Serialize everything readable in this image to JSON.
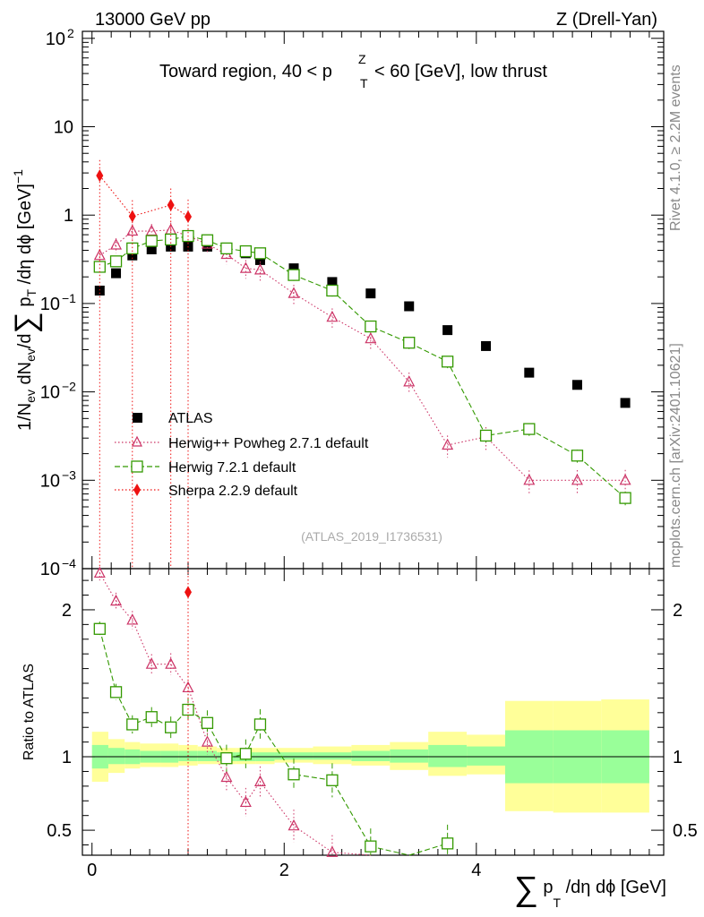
{
  "header": {
    "energy_label": "13000 GeV pp",
    "process_label": "Z (Drell-Yan)",
    "plot_title": "Toward region, 40 < p",
    "plot_title_tail": " < 60 [GeV], low thrust",
    "plot_title_sup": "Z",
    "plot_title_sub": "T"
  },
  "side_labels": {
    "rivet": "Rivet 4.1.0, ≥ 2.2M events",
    "mcplots": "mcplots.cern.ch [arXiv:2401.10621]"
  },
  "watermark": "(ATLAS_2019_I1736531)",
  "legend": [
    {
      "key": "atlas",
      "label": "ATLAS"
    },
    {
      "key": "herwigpp",
      "label": "Herwig++ Powheg 2.7.1 default"
    },
    {
      "key": "herwig7",
      "label": "Herwig 7.2.1 default"
    },
    {
      "key": "sherpa",
      "label": "Sherpa 2.2.9 default"
    }
  ],
  "colors": {
    "atlas": "#000000",
    "herwigpp": "#cc3366",
    "herwig7": "#339900",
    "sherpa": "#ee1111",
    "band_inner": "#99ff99",
    "band_outer": "#ffff99"
  },
  "chart_data": [
    {
      "type": "scatter",
      "scale": "log",
      "ylabel": "1/N_ev dN_ev/d∑ p_T /dη dϕ [GeV]^-1",
      "xlim": [
        -0.1,
        5.95
      ],
      "ylim": [
        0.0001,
        120
      ],
      "y_ticks": [
        {
          "value": 0.0001,
          "label": "10",
          "exp": "−4"
        },
        {
          "value": 0.001,
          "label": "10",
          "exp": "−3"
        },
        {
          "value": 0.01,
          "label": "10",
          "exp": "−2"
        },
        {
          "value": 0.1,
          "label": "10",
          "exp": "−1"
        },
        {
          "value": 1,
          "label": "1",
          "exp": ""
        },
        {
          "value": 10,
          "label": "10",
          "exp": ""
        },
        {
          "value": 100,
          "label": "10",
          "exp": "2"
        }
      ],
      "series": [
        {
          "name": "ATLAS",
          "key": "atlas",
          "x": [
            0.08,
            0.25,
            0.42,
            0.62,
            0.82,
            1.0,
            1.2,
            1.4,
            1.6,
            1.75,
            2.1,
            2.5,
            2.9,
            3.3,
            3.7,
            4.1,
            4.55,
            5.05,
            5.55
          ],
          "y": [
            0.14,
            0.22,
            0.35,
            0.41,
            0.44,
            0.44,
            0.44,
            0.42,
            0.37,
            0.31,
            0.25,
            0.175,
            0.13,
            0.093,
            0.05,
            0.033,
            0.0165,
            0.012,
            0.0075
          ]
        },
        {
          "name": "Herwig++ Powheg 2.7.1 default",
          "key": "herwigpp",
          "x": [
            0.08,
            0.25,
            0.42,
            0.62,
            0.82,
            1.0,
            1.2,
            1.4,
            1.6,
            1.75,
            2.1,
            2.5,
            2.9,
            3.3,
            3.7,
            4.1,
            4.55,
            5.05,
            5.55
          ],
          "y": [
            0.35,
            0.46,
            0.66,
            0.66,
            0.68,
            0.58,
            0.47,
            0.36,
            0.25,
            0.24,
            0.13,
            0.07,
            0.04,
            0.013,
            0.0025,
            0.0031,
            0.001,
            0.001,
            0.001
          ]
        },
        {
          "name": "Herwig 7.2.1 default",
          "key": "herwig7",
          "x": [
            0.08,
            0.25,
            0.42,
            0.62,
            0.82,
            1.0,
            1.2,
            1.4,
            1.6,
            1.75,
            2.1,
            2.5,
            2.9,
            3.3,
            3.7,
            4.1,
            4.55,
            5.05,
            5.55
          ],
          "y": [
            0.26,
            0.3,
            0.42,
            0.51,
            0.53,
            0.58,
            0.52,
            0.42,
            0.39,
            0.37,
            0.21,
            0.14,
            0.055,
            0.036,
            0.022,
            0.0032,
            0.0038,
            0.0019,
            0.00063
          ]
        },
        {
          "name": "Sherpa 2.2.9 default",
          "key": "sherpa",
          "x": [
            0.08,
            0.42,
            0.82,
            1.0
          ],
          "y": [
            2.8,
            0.97,
            1.3,
            0.96
          ]
        }
      ]
    },
    {
      "type": "scatter",
      "scale": "linear",
      "xlabel": "∑ p_T /dη dϕ [GeV]",
      "ylabel": "Ratio to ATLAS",
      "xlim": [
        -0.1,
        5.95
      ],
      "ylim": [
        0.33,
        2.28
      ],
      "x_ticks": [
        0,
        2,
        4
      ],
      "y_ticks": [
        0.5,
        1,
        2
      ],
      "bands": {
        "edges": [
          0,
          0.17,
          0.34,
          0.5,
          0.72,
          0.9,
          1.1,
          1.3,
          1.5,
          1.7,
          1.9,
          2.3,
          2.7,
          3.1,
          3.5,
          3.9,
          4.3,
          4.8,
          5.3,
          5.8
        ],
        "inner": [
          [
            0.92,
            1.08
          ],
          [
            0.95,
            1.06
          ],
          [
            0.95,
            1.05
          ],
          [
            0.96,
            1.04
          ],
          [
            0.96,
            1.04
          ],
          [
            0.97,
            1.04
          ],
          [
            0.97,
            1.04
          ],
          [
            0.97,
            1.03
          ],
          [
            0.97,
            1.03
          ],
          [
            0.97,
            1.03
          ],
          [
            0.98,
            1.03
          ],
          [
            0.98,
            1.03
          ],
          [
            0.97,
            1.04
          ],
          [
            0.96,
            1.05
          ],
          [
            0.93,
            1.08
          ],
          [
            0.94,
            1.07
          ],
          [
            0.82,
            1.18
          ],
          [
            0.82,
            1.18
          ],
          [
            0.82,
            1.18
          ]
        ],
        "outer": [
          [
            0.83,
            1.17
          ],
          [
            0.89,
            1.12
          ],
          [
            0.92,
            1.1
          ],
          [
            0.93,
            1.09
          ],
          [
            0.93,
            1.09
          ],
          [
            0.94,
            1.08
          ],
          [
            0.95,
            1.07
          ],
          [
            0.95,
            1.06
          ],
          [
            0.95,
            1.06
          ],
          [
            0.95,
            1.06
          ],
          [
            0.96,
            1.06
          ],
          [
            0.95,
            1.07
          ],
          [
            0.94,
            1.08
          ],
          [
            0.91,
            1.1
          ],
          [
            0.87,
            1.17
          ],
          [
            0.88,
            1.15
          ],
          [
            0.63,
            1.38
          ],
          [
            0.62,
            1.38
          ],
          [
            0.62,
            1.39
          ]
        ]
      },
      "series": [
        {
          "name": "Herwig++ Powheg 2.7.1 default",
          "key": "herwigpp",
          "x": [
            0.08,
            0.25,
            0.42,
            0.62,
            0.82,
            1.0,
            1.2,
            1.4,
            1.6,
            1.75,
            2.1,
            2.5
          ],
          "y": [
            2.25,
            2.06,
            1.93,
            1.63,
            1.63,
            1.47,
            1.1,
            0.86,
            0.69,
            0.83,
            0.53,
            0.35
          ]
        },
        {
          "name": "Herwig 7.2.1 default",
          "key": "herwig7",
          "x": [
            0.08,
            0.25,
            0.42,
            0.62,
            0.82,
            1.0,
            1.2,
            1.4,
            1.6,
            1.75,
            2.1,
            2.5,
            2.9,
            3.7
          ],
          "y": [
            1.87,
            1.44,
            1.22,
            1.27,
            1.2,
            1.32,
            1.23,
            0.99,
            1.02,
            1.22,
            0.88,
            0.84,
            0.39,
            0.41
          ]
        },
        {
          "name": "Sherpa 2.2.9 default",
          "key": "sherpa",
          "x": [
            1.0
          ],
          "y": [
            2.12
          ]
        }
      ]
    }
  ]
}
